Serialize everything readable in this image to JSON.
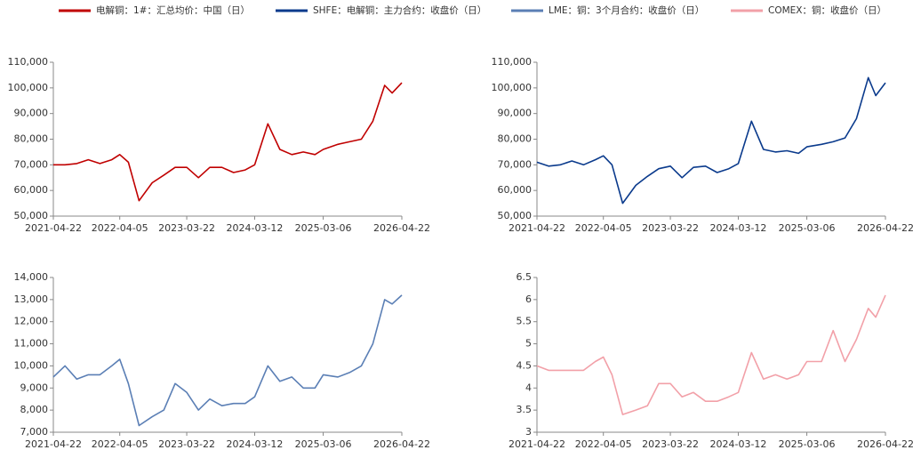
{
  "chart_data": [
    {
      "type": "line",
      "x": [
        "2021-04-22",
        "2021-06-22",
        "2021-08-23",
        "2021-10-22",
        "2021-12-22",
        "2022-02-22",
        "2022-04-05",
        "2022-05-20",
        "2022-07-15",
        "2022-09-22",
        "2022-11-22",
        "2023-01-20",
        "2023-03-22",
        "2023-05-22",
        "2023-07-21",
        "2023-09-22",
        "2023-11-22",
        "2024-01-22",
        "2024-03-12",
        "2024-05-20",
        "2024-07-22",
        "2024-09-23",
        "2024-11-22",
        "2025-01-22",
        "2025-03-06",
        "2025-05-22",
        "2025-07-22",
        "2025-09-22",
        "2025-11-21",
        "2026-01-22",
        "2026-03-02",
        "2026-04-22"
      ],
      "series": [
        {
          "name": "电解铜：1#：汇总均价：中国（日）",
          "color": "#c00000",
          "values": [
            70000,
            70000,
            70500,
            72000,
            70500,
            72000,
            74000,
            71000,
            56000,
            63000,
            66000,
            69000,
            69000,
            65000,
            69000,
            69000,
            67000,
            68000,
            70000,
            86000,
            76000,
            74000,
            75000,
            74000,
            76000,
            78000,
            79000,
            80000,
            87000,
            101000,
            98000,
            102000
          ]
        }
      ],
      "xlim": [
        "2021-04-22",
        "2026-04-22"
      ],
      "xticks": [
        "2021-04-22",
        "2022-04-05",
        "2023-03-22",
        "2024-03-12",
        "2025-03-06",
        "2026-04-22"
      ],
      "ylim": [
        50000,
        110000
      ],
      "yticks": [
        {
          "value": 50000,
          "label": "50,000"
        },
        {
          "value": 60000,
          "label": "60,000"
        },
        {
          "value": 70000,
          "label": "70,000"
        },
        {
          "value": 80000,
          "label": "80,000"
        },
        {
          "value": 90000,
          "label": "90,000"
        },
        {
          "value": 100000,
          "label": "100,000"
        },
        {
          "value": 110000,
          "label": "110,000"
        }
      ]
    },
    {
      "type": "line",
      "x": [
        "2021-04-22",
        "2021-06-22",
        "2021-08-23",
        "2021-10-22",
        "2021-12-22",
        "2022-02-22",
        "2022-04-05",
        "2022-05-20",
        "2022-07-15",
        "2022-09-22",
        "2022-11-22",
        "2023-01-20",
        "2023-03-22",
        "2023-05-22",
        "2023-07-21",
        "2023-09-22",
        "2023-11-22",
        "2024-01-22",
        "2024-03-12",
        "2024-05-20",
        "2024-07-22",
        "2024-09-23",
        "2024-11-22",
        "2025-01-22",
        "2025-03-06",
        "2025-05-22",
        "2025-07-22",
        "2025-09-22",
        "2025-11-21",
        "2026-01-22",
        "2026-03-02",
        "2026-04-22"
      ],
      "series": [
        {
          "name": "SHFE：电解铜：主力合约：收盘价（日）",
          "color": "#0a3a8c",
          "values": [
            71000,
            69500,
            70000,
            71500,
            70000,
            72000,
            73500,
            70000,
            55000,
            62000,
            65500,
            68500,
            69500,
            65000,
            69000,
            69500,
            67000,
            68500,
            70500,
            87000,
            76000,
            75000,
            75500,
            74500,
            77000,
            78000,
            79000,
            80500,
            88000,
            104000,
            97000,
            102000
          ]
        }
      ],
      "xlim": [
        "2021-04-22",
        "2026-04-22"
      ],
      "xticks": [
        "2021-04-22",
        "2022-04-05",
        "2023-03-22",
        "2024-03-12",
        "2025-03-06",
        "2026-04-22"
      ],
      "ylim": [
        50000,
        110000
      ],
      "yticks": [
        {
          "value": 50000,
          "label": "50,000"
        },
        {
          "value": 60000,
          "label": "60,000"
        },
        {
          "value": 70000,
          "label": "70,000"
        },
        {
          "value": 80000,
          "label": "80,000"
        },
        {
          "value": 90000,
          "label": "90,000"
        },
        {
          "value": 100000,
          "label": "100,000"
        },
        {
          "value": 110000,
          "label": "110,000"
        }
      ]
    },
    {
      "type": "line",
      "x": [
        "2021-04-22",
        "2021-06-22",
        "2021-08-23",
        "2021-10-22",
        "2021-12-22",
        "2022-02-22",
        "2022-04-05",
        "2022-05-20",
        "2022-07-15",
        "2022-09-22",
        "2022-11-22",
        "2023-01-20",
        "2023-03-22",
        "2023-05-22",
        "2023-07-21",
        "2023-09-22",
        "2023-11-22",
        "2024-01-22",
        "2024-03-12",
        "2024-05-20",
        "2024-07-22",
        "2024-09-23",
        "2024-11-22",
        "2025-01-22",
        "2025-03-06",
        "2025-05-22",
        "2025-07-22",
        "2025-09-22",
        "2025-11-21",
        "2026-01-22",
        "2026-03-02",
        "2026-04-22"
      ],
      "series": [
        {
          "name": "LME：铜：3个月合约：收盘价（日）",
          "color": "#5b7fb5",
          "values": [
            9500,
            10000,
            9400,
            9600,
            9600,
            10000,
            10300,
            9200,
            7300,
            7700,
            8000,
            9200,
            8800,
            8000,
            8500,
            8200,
            8300,
            8300,
            8600,
            10000,
            9300,
            9500,
            9000,
            9000,
            9600,
            9500,
            9700,
            10000,
            11000,
            13000,
            12800,
            13200
          ]
        }
      ],
      "xlim": [
        "2021-04-22",
        "2026-04-22"
      ],
      "xticks": [
        "2021-04-22",
        "2022-04-05",
        "2023-03-22",
        "2024-03-12",
        "2025-03-06",
        "2026-04-22"
      ],
      "ylim": [
        7000,
        14000
      ],
      "yticks": [
        {
          "value": 7000,
          "label": "7,000"
        },
        {
          "value": 8000,
          "label": "8,000"
        },
        {
          "value": 9000,
          "label": "9,000"
        },
        {
          "value": 10000,
          "label": "10,000"
        },
        {
          "value": 11000,
          "label": "11,000"
        },
        {
          "value": 12000,
          "label": "12,000"
        },
        {
          "value": 13000,
          "label": "13,000"
        },
        {
          "value": 14000,
          "label": "14,000"
        }
      ]
    },
    {
      "type": "line",
      "x": [
        "2021-04-22",
        "2021-06-22",
        "2021-08-23",
        "2021-10-22",
        "2021-12-22",
        "2022-02-22",
        "2022-04-05",
        "2022-05-20",
        "2022-07-15",
        "2022-09-22",
        "2022-11-22",
        "2023-01-20",
        "2023-03-22",
        "2023-05-22",
        "2023-07-21",
        "2023-09-22",
        "2023-11-22",
        "2024-01-22",
        "2024-03-12",
        "2024-05-20",
        "2024-07-22",
        "2024-09-23",
        "2024-11-22",
        "2025-01-22",
        "2025-03-06",
        "2025-05-22",
        "2025-07-22",
        "2025-09-22",
        "2025-11-21",
        "2026-01-22",
        "2026-03-02",
        "2026-04-22"
      ],
      "series": [
        {
          "name": "COMEX：铜：收盘价（日）",
          "color": "#f2a0a8",
          "values": [
            4.5,
            4.4,
            4.4,
            4.4,
            4.4,
            4.6,
            4.7,
            4.3,
            3.4,
            3.5,
            3.6,
            4.1,
            4.1,
            3.8,
            3.9,
            3.7,
            3.7,
            3.8,
            3.9,
            4.8,
            4.2,
            4.3,
            4.2,
            4.3,
            4.6,
            4.6,
            5.3,
            4.6,
            5.1,
            5.8,
            5.6,
            6.1
          ]
        }
      ],
      "xlim": [
        "2021-04-22",
        "2026-04-22"
      ],
      "xticks": [
        "2021-04-22",
        "2022-04-05",
        "2023-03-22",
        "2024-03-12",
        "2025-03-06",
        "2026-04-22"
      ],
      "ylim": [
        3,
        6.5
      ],
      "yticks": [
        3,
        3.5,
        4,
        4.5,
        5,
        5.5,
        6,
        6.5
      ]
    }
  ]
}
